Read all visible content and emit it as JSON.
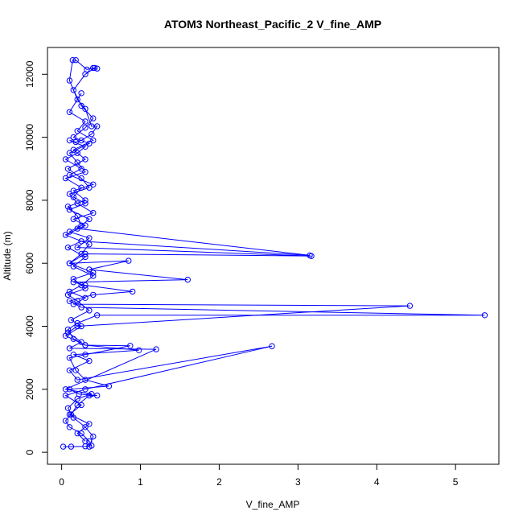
{
  "chart_data": {
    "type": "line",
    "title": "ATOM3 Northeast_Pacific_2 V_fine_AMP",
    "xlabel": "V_fine_AMP",
    "ylabel": "Altitude (m)",
    "xlim": [
      -0.18,
      5.55
    ],
    "ylim": [
      -380,
      12850
    ],
    "xticks": [
      0,
      1,
      2,
      3,
      4,
      5
    ],
    "yticks": [
      0,
      2000,
      4000,
      6000,
      8000,
      10000,
      12000
    ],
    "grid": false,
    "legend": "none",
    "marker": "open-circle",
    "series": [
      {
        "color": "#0000ff",
        "points": [
          [
            0.02,
            180
          ],
          [
            0.12,
            180
          ],
          [
            0.3,
            190
          ],
          [
            0.38,
            210
          ],
          [
            0.35,
            350
          ],
          [
            0.25,
            600
          ],
          [
            0.1,
            800
          ],
          [
            0.05,
            1000
          ],
          [
            0.12,
            1200
          ],
          [
            0.2,
            1500
          ],
          [
            0.35,
            1800
          ],
          [
            0.45,
            1800
          ],
          [
            0.22,
            1850
          ],
          [
            0.1,
            2000
          ],
          [
            0.6,
            2100
          ],
          [
            0.3,
            2300
          ],
          [
            0.18,
            2600
          ],
          [
            0.1,
            3000
          ],
          [
            0.3,
            3100
          ],
          [
            0.87,
            3380
          ],
          [
            0.3,
            3400
          ],
          [
            0.15,
            3600
          ],
          [
            0.08,
            3900
          ],
          [
            0.2,
            4100
          ],
          [
            0.45,
            4350
          ],
          [
            5.37,
            4350
          ],
          [
            0.25,
            4600
          ],
          [
            0.1,
            4800
          ],
          [
            0.4,
            5000
          ],
          [
            0.9,
            5100
          ],
          [
            0.3,
            5300
          ],
          [
            0.15,
            5400
          ],
          [
            1.6,
            5480
          ],
          [
            0.35,
            5800
          ],
          [
            0.85,
            6080
          ],
          [
            0.1,
            6000
          ],
          [
            0.3,
            6300
          ],
          [
            3.17,
            6230
          ],
          [
            0.2,
            6500
          ],
          [
            0.35,
            6800
          ],
          [
            0.1,
            7000
          ],
          [
            0.25,
            7200
          ],
          [
            0.2,
            7500
          ],
          [
            0.08,
            7800
          ],
          [
            0.3,
            8000
          ],
          [
            0.15,
            8300
          ],
          [
            0.4,
            8500
          ],
          [
            0.1,
            8800
          ],
          [
            0.25,
            9000
          ],
          [
            0.05,
            9300
          ],
          [
            0.2,
            9500
          ],
          [
            0.3,
            9700
          ],
          [
            0.1,
            9900
          ],
          [
            0.18,
            9850
          ],
          [
            0.25,
            9900
          ],
          [
            0.38,
            10100
          ],
          [
            0.45,
            10350
          ],
          [
            0.38,
            10350
          ],
          [
            0.3,
            10900
          ],
          [
            0.2,
            11200
          ],
          [
            0.1,
            11800
          ],
          [
            0.14,
            12450
          ],
          [
            0.18,
            12450
          ],
          [
            0.32,
            12150
          ],
          [
            0.4,
            12200
          ],
          [
            0.45,
            12180
          ]
        ]
      },
      {
        "color": "#0000ff",
        "points": [
          [
            0.35,
            180
          ],
          [
            0.4,
            500
          ],
          [
            0.3,
            800
          ],
          [
            0.15,
            1100
          ],
          [
            0.08,
            1400
          ],
          [
            0.2,
            1700
          ],
          [
            0.38,
            1850
          ],
          [
            0.05,
            2000
          ],
          [
            1.2,
            3270
          ],
          [
            0.1,
            3300
          ],
          [
            0.25,
            3500
          ],
          [
            0.08,
            3800
          ],
          [
            0.2,
            4000
          ],
          [
            4.42,
            4650
          ],
          [
            0.15,
            4700
          ],
          [
            0.3,
            4900
          ],
          [
            0.1,
            5100
          ],
          [
            0.25,
            5300
          ],
          [
            0.4,
            5600
          ],
          [
            0.15,
            5900
          ],
          [
            0.3,
            6200
          ],
          [
            0.08,
            6500
          ],
          [
            0.25,
            6700
          ],
          [
            3.15,
            6250
          ],
          [
            0.2,
            7100
          ],
          [
            0.35,
            7400
          ],
          [
            0.1,
            7700
          ],
          [
            0.3,
            7900
          ],
          [
            0.15,
            8100
          ],
          [
            0.25,
            8400
          ],
          [
            0.05,
            8700
          ],
          [
            0.3,
            8900
          ],
          [
            0.2,
            9200
          ],
          [
            0.1,
            9500
          ],
          [
            0.35,
            9800
          ],
          [
            0.15,
            10000
          ],
          [
            0.3,
            10300
          ],
          [
            0.4,
            10600
          ],
          [
            0.25,
            11000
          ],
          [
            0.15,
            11500
          ],
          [
            0.3,
            12000
          ],
          [
            0.42,
            12200
          ]
        ]
      },
      {
        "color": "#0000ff",
        "points": [
          [
            0.3,
            350
          ],
          [
            0.2,
            600
          ],
          [
            0.35,
            900
          ],
          [
            0.1,
            1200
          ],
          [
            0.25,
            1500
          ],
          [
            0.05,
            1800
          ],
          [
            0.3,
            2000
          ],
          [
            2.67,
            3370
          ],
          [
            0.2,
            2300
          ],
          [
            0.1,
            2600
          ],
          [
            0.35,
            2900
          ],
          [
            0.15,
            3100
          ],
          [
            0.98,
            3240
          ],
          [
            0.3,
            3400
          ],
          [
            0.05,
            3700
          ],
          [
            0.25,
            4000
          ],
          [
            0.12,
            4200
          ],
          [
            0.35,
            4500
          ],
          [
            0.2,
            4800
          ],
          [
            0.08,
            5000
          ],
          [
            0.3,
            5200
          ],
          [
            0.15,
            5500
          ],
          [
            0.4,
            5700
          ],
          [
            0.1,
            6000
          ],
          [
            0.25,
            6300
          ],
          [
            0.35,
            6600
          ],
          [
            0.05,
            6900
          ],
          [
            0.3,
            7200
          ],
          [
            0.15,
            7400
          ],
          [
            0.4,
            7600
          ],
          [
            0.2,
            7900
          ],
          [
            0.1,
            8200
          ],
          [
            0.35,
            8400
          ],
          [
            0.25,
            8700
          ],
          [
            0.08,
            9000
          ],
          [
            0.3,
            9300
          ],
          [
            0.15,
            9600
          ],
          [
            0.4,
            9900
          ],
          [
            0.2,
            10200
          ],
          [
            0.3,
            10500
          ],
          [
            0.1,
            10800
          ],
          [
            0.25,
            11400
          ]
        ]
      }
    ]
  }
}
